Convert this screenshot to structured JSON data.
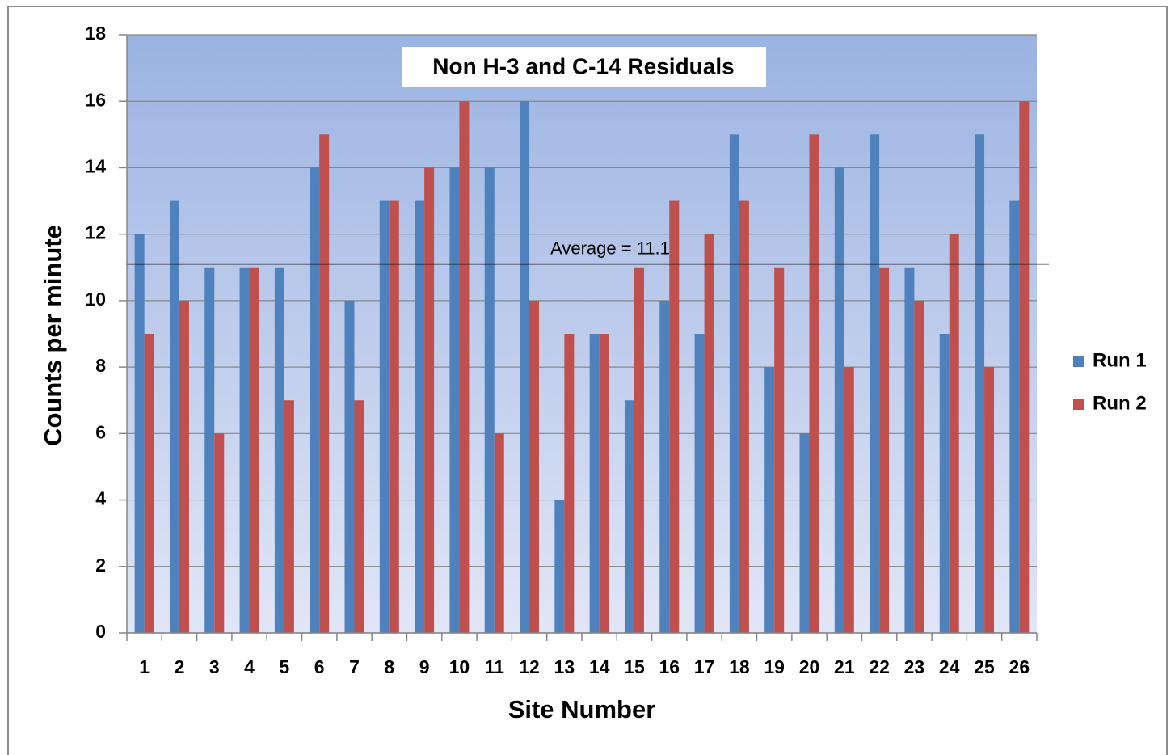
{
  "chart_data": {
    "type": "bar",
    "title": "Non H-3 and C-14 Residuals",
    "x_label": "Site Number",
    "y_label": "Counts per minute",
    "categories": [
      "1",
      "2",
      "3",
      "4",
      "5",
      "6",
      "7",
      "8",
      "9",
      "10",
      "11",
      "12",
      "13",
      "14",
      "15",
      "16",
      "17",
      "18",
      "19",
      "20",
      "21",
      "22",
      "23",
      "24",
      "25",
      "26"
    ],
    "series": [
      {
        "name": "Run 1",
        "color": "#4f81bd",
        "values": [
          12,
          13,
          11,
          11,
          11,
          14,
          10,
          13,
          13,
          14,
          14,
          16,
          4,
          9,
          7,
          10,
          9,
          15,
          8,
          6,
          14,
          15,
          11,
          9,
          15,
          13
        ]
      },
      {
        "name": "Run 2",
        "color": "#c0504d",
        "values": [
          9,
          10,
          6,
          11,
          7,
          15,
          7,
          13,
          14,
          16,
          6,
          10,
          9,
          9,
          11,
          13,
          12,
          13,
          11,
          15,
          8,
          11,
          10,
          12,
          8,
          16
        ]
      }
    ],
    "average": {
      "value": 11.1,
      "label": "Average = 11.1"
    },
    "ylim": [
      0,
      18
    ],
    "yticks": [
      0,
      2,
      4,
      6,
      8,
      10,
      12,
      14,
      16,
      18
    ],
    "grid": true,
    "legend": "right"
  }
}
